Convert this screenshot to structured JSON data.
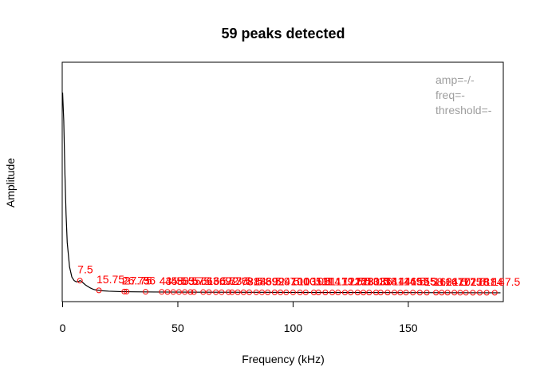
{
  "chart_data": {
    "type": "line",
    "title": "59 peaks detected",
    "xlabel": "Frequency (kHz)",
    "ylabel": "Amplitude",
    "xlim": [
      0,
      190
    ],
    "ylim": [
      0,
      1
    ],
    "x_ticks": [
      0,
      50,
      100,
      150
    ],
    "y_ticks": [],
    "grid": false,
    "legend_position": "top-right",
    "legend": [
      "amp=-/-",
      "freq=-",
      "threshold=-"
    ],
    "series": [
      {
        "color": "#000000",
        "x": [
          0,
          0.5,
          1,
          1.5,
          2,
          3,
          4,
          5,
          6,
          7,
          7.5,
          8,
          9,
          10,
          11,
          12,
          13,
          14,
          15,
          15.75,
          17,
          20,
          25,
          30,
          40,
          60,
          100,
          150,
          190
        ],
        "y": [
          1.0,
          0.86,
          0.6,
          0.4,
          0.26,
          0.14,
          0.09,
          0.072,
          0.066,
          0.068,
          0.072,
          0.07,
          0.06,
          0.05,
          0.043,
          0.036,
          0.031,
          0.027,
          0.025,
          0.024,
          0.022,
          0.02,
          0.018,
          0.017,
          0.016,
          0.015,
          0.014,
          0.013,
          0.012
        ]
      }
    ],
    "peaks": {
      "color": "#ff0000",
      "marker": "circle",
      "x": [
        7.5,
        15.75,
        26.75,
        27.75,
        36,
        43,
        45.5,
        48,
        50.5,
        53,
        55.5,
        57,
        61,
        63.5,
        66.5,
        69,
        72,
        73.5,
        76,
        78.5,
        81,
        84,
        86.5,
        89,
        92,
        94.5,
        97,
        100,
        103,
        105.5,
        109,
        111,
        114,
        117,
        119.5,
        122.5,
        125,
        128,
        130.5,
        133,
        136,
        138,
        141,
        144,
        146.5,
        149,
        152,
        155,
        158,
        162,
        164.5,
        167,
        170,
        172.5,
        175,
        178,
        181,
        184,
        187.5
      ],
      "y": [
        0.072,
        0.024,
        0.018,
        0.018,
        0.017,
        0.0165,
        0.0163,
        0.016,
        0.016,
        0.016,
        0.0158,
        0.0155,
        0.0155,
        0.0153,
        0.015,
        0.015,
        0.015,
        0.015,
        0.0148,
        0.0147,
        0.0146,
        0.0145,
        0.0145,
        0.0144,
        0.0143,
        0.0142,
        0.0141,
        0.014,
        0.014,
        0.014,
        0.0139,
        0.0138,
        0.0137,
        0.0136,
        0.0136,
        0.0135,
        0.0135,
        0.0134,
        0.0134,
        0.0133,
        0.0133,
        0.0132,
        0.0132,
        0.0131,
        0.013,
        0.013,
        0.013,
        0.0129,
        0.0128,
        0.0128,
        0.0127,
        0.0127,
        0.0126,
        0.0125,
        0.0125,
        0.0124,
        0.0124,
        0.0123,
        0.0122
      ],
      "labels": [
        "7.5",
        "15.75",
        "26.75",
        "27.75",
        "36",
        "43",
        "45.5",
        "48",
        "50.5",
        "53",
        "55.5",
        "57",
        "61",
        "63.5",
        "66.5",
        "69",
        "72",
        "73.5",
        "76",
        "78.5",
        "81",
        "84",
        "86.5",
        "89",
        "92",
        "94.5",
        "97",
        "100",
        "103",
        "105.5",
        "109",
        "111",
        "114",
        "117",
        "119.5",
        "122.5",
        "125",
        "128",
        "130.5",
        "133",
        "136",
        "138",
        "141",
        "144",
        "146.5",
        "149",
        "152",
        "155",
        "158",
        "162",
        "164.5",
        "167",
        "170",
        "172.5",
        "175",
        "178",
        "181",
        "184",
        "187.5"
      ]
    }
  }
}
